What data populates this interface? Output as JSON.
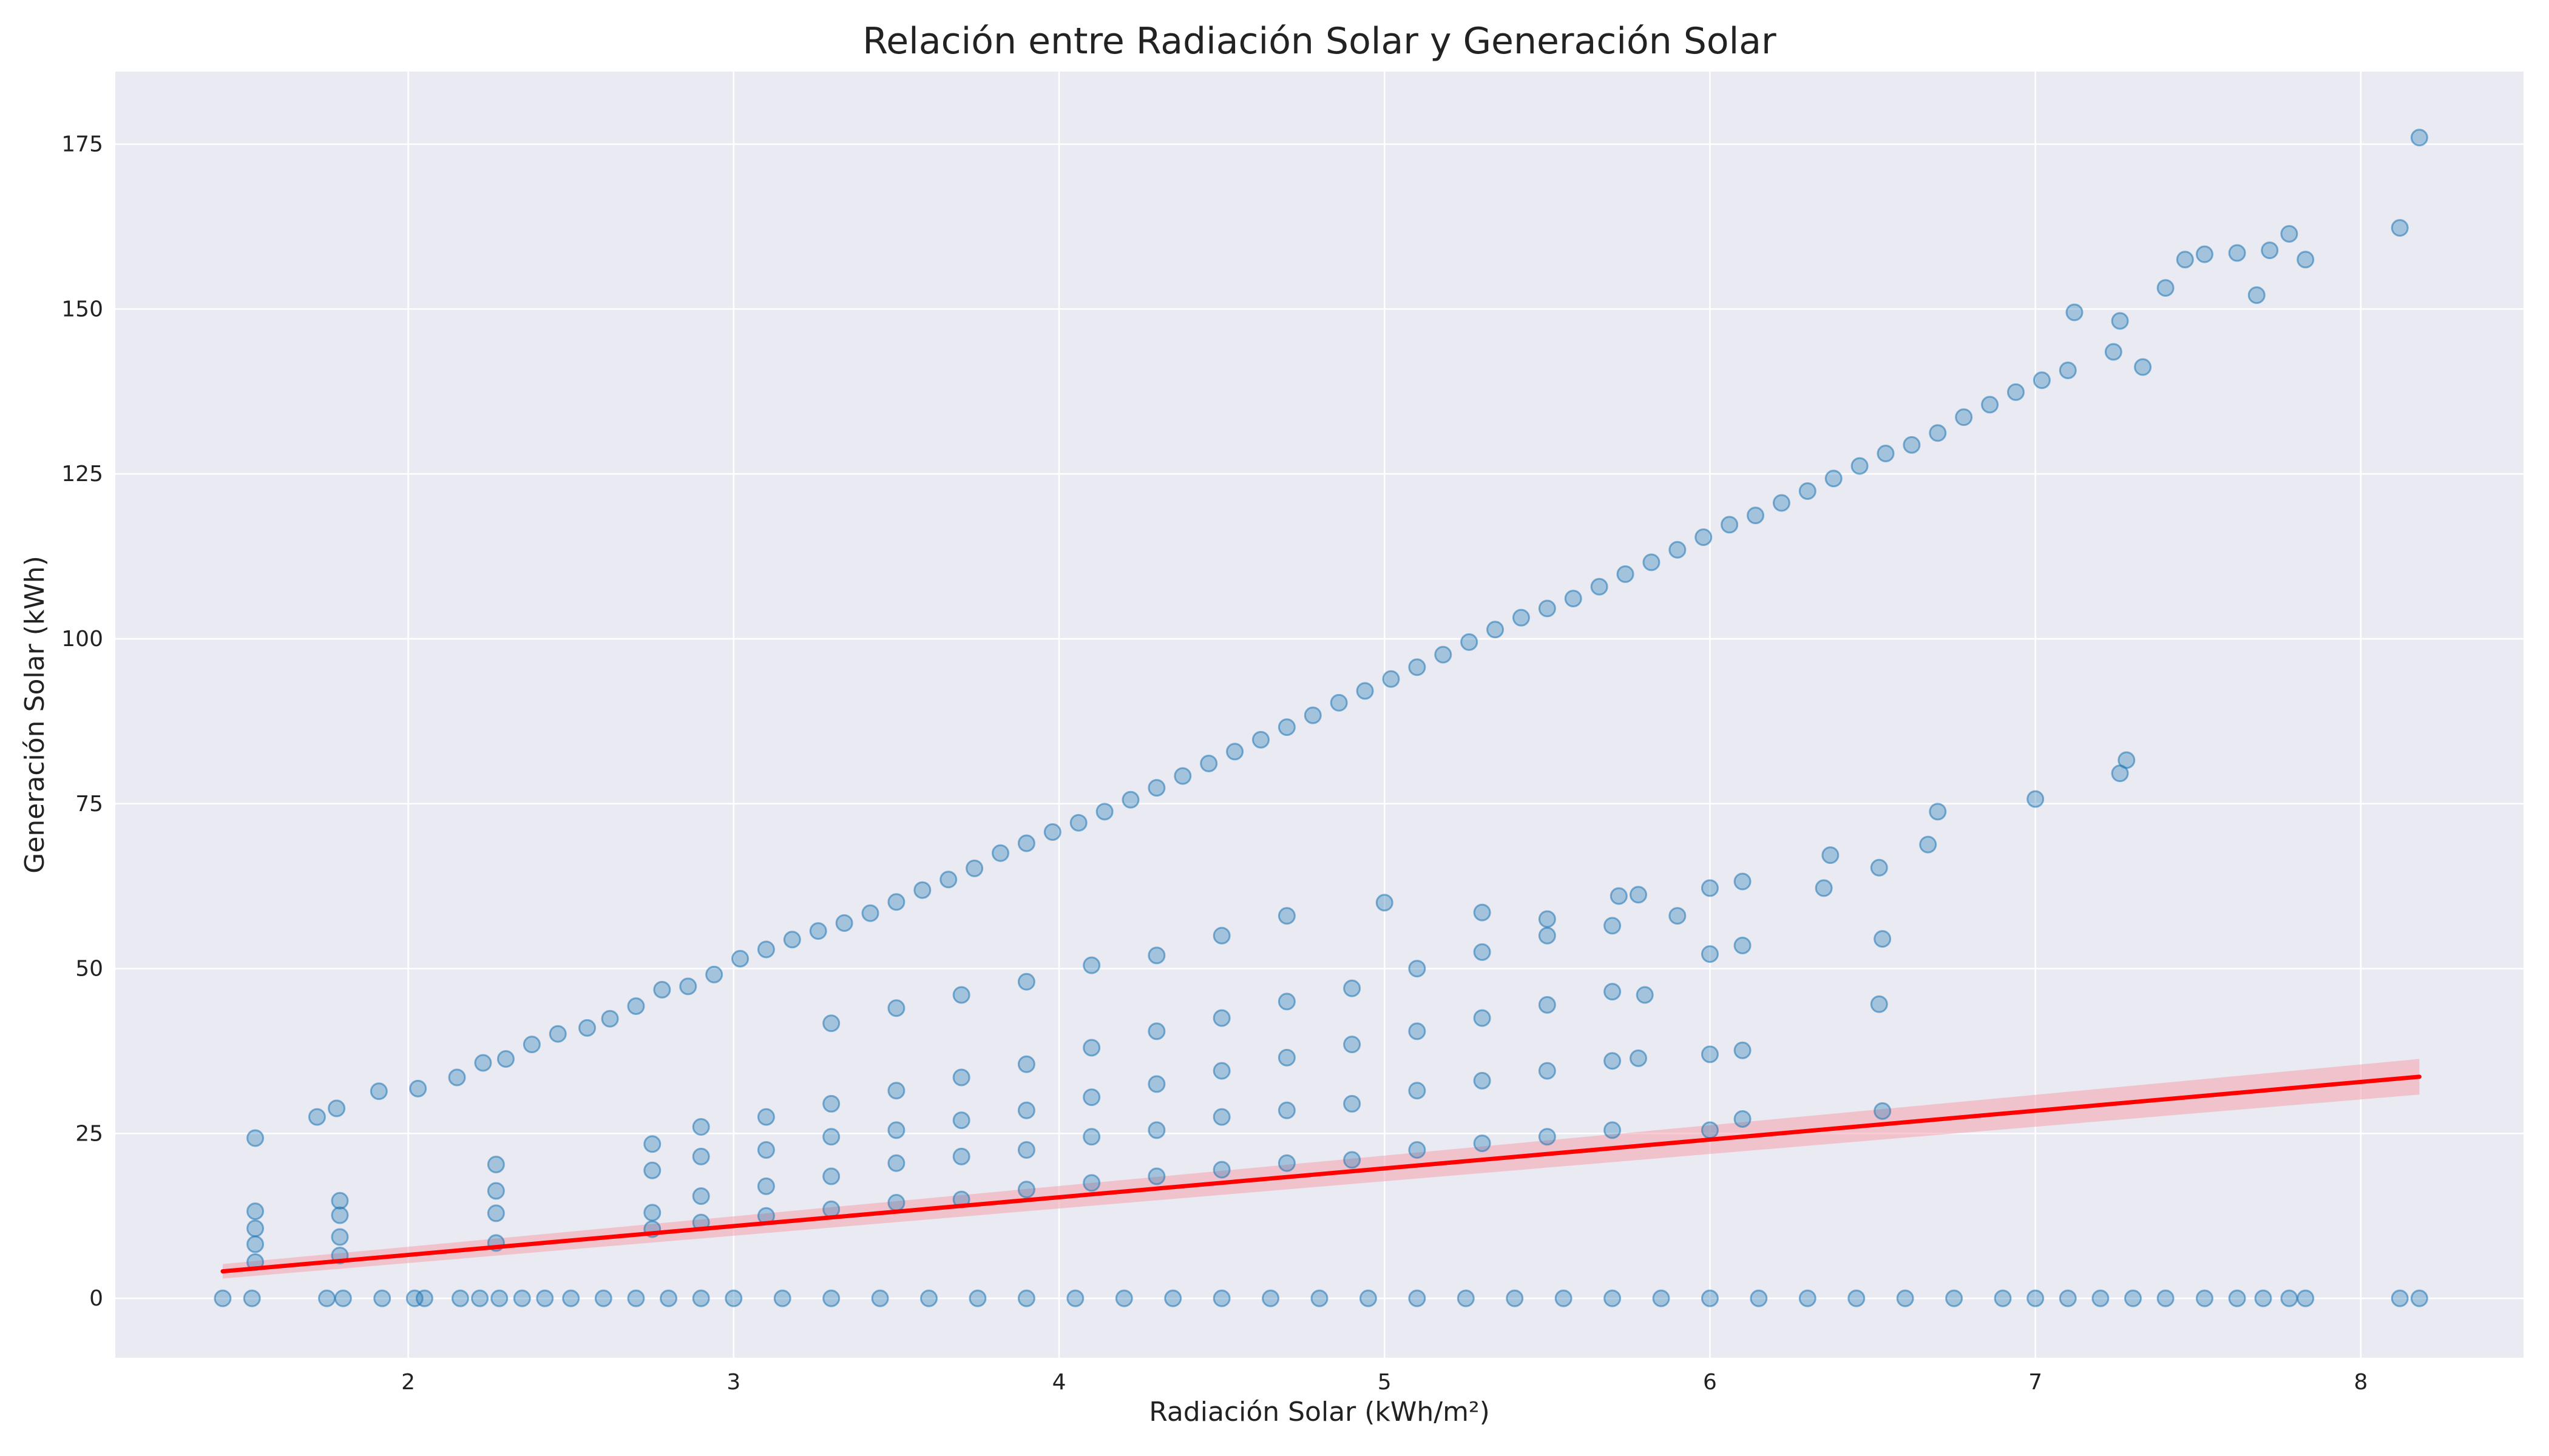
{
  "chart_data": {
    "type": "scatter",
    "title": "Relación entre Radiación Solar y Generación Solar",
    "xlabel": "Radiación Solar (kWh/m²)",
    "ylabel": "Generación Solar (kWh)",
    "xlim": [
      1.1,
      8.5
    ],
    "ylim": [
      -9,
      186
    ],
    "xticks": [
      2,
      3,
      4,
      5,
      6,
      7,
      8
    ],
    "yticks": [
      0,
      25,
      50,
      75,
      100,
      125,
      150,
      175
    ],
    "grid": true,
    "colors": {
      "background": "#eaeaf2",
      "grid": "#ffffff",
      "points": "#1f77b4",
      "regression": "#ff0000",
      "confidence_band": "#f4a3ad"
    },
    "points_opacity": 0.35,
    "series": [
      {
        "type": "scatter",
        "points": [
          [
            1.43,
            0
          ],
          [
            1.52,
            0
          ],
          [
            1.75,
            0
          ],
          [
            1.8,
            0
          ],
          [
            1.92,
            0
          ],
          [
            2.02,
            0
          ],
          [
            2.05,
            0
          ],
          [
            2.16,
            0
          ],
          [
            2.22,
            0
          ],
          [
            2.28,
            0
          ],
          [
            2.35,
            0
          ],
          [
            2.42,
            0
          ],
          [
            2.5,
            0
          ],
          [
            2.6,
            0
          ],
          [
            2.7,
            0
          ],
          [
            2.8,
            0
          ],
          [
            2.9,
            0
          ],
          [
            3.0,
            0
          ],
          [
            3.15,
            0
          ],
          [
            3.3,
            0
          ],
          [
            3.45,
            0
          ],
          [
            3.6,
            0
          ],
          [
            3.75,
            0
          ],
          [
            3.9,
            0
          ],
          [
            4.05,
            0
          ],
          [
            4.2,
            0
          ],
          [
            4.35,
            0
          ],
          [
            4.5,
            0
          ],
          [
            4.65,
            0
          ],
          [
            4.8,
            0
          ],
          [
            4.95,
            0
          ],
          [
            5.1,
            0
          ],
          [
            5.25,
            0
          ],
          [
            5.4,
            0
          ],
          [
            5.55,
            0
          ],
          [
            5.7,
            0
          ],
          [
            5.85,
            0
          ],
          [
            6.0,
            0
          ],
          [
            6.15,
            0
          ],
          [
            6.3,
            0
          ],
          [
            6.45,
            0
          ],
          [
            6.6,
            0
          ],
          [
            6.75,
            0
          ],
          [
            6.9,
            0
          ],
          [
            7.0,
            0
          ],
          [
            7.1,
            0
          ],
          [
            7.2,
            0
          ],
          [
            7.3,
            0
          ],
          [
            7.4,
            0
          ],
          [
            7.52,
            0
          ],
          [
            7.62,
            0
          ],
          [
            7.7,
            0
          ],
          [
            7.78,
            0
          ],
          [
            7.83,
            0
          ],
          [
            8.12,
            0
          ],
          [
            8.18,
            0
          ],
          [
            1.53,
            24.3
          ],
          [
            1.72,
            27.5
          ],
          [
            1.78,
            28.8
          ],
          [
            1.91,
            31.4
          ],
          [
            2.03,
            31.8
          ],
          [
            2.15,
            33.5
          ],
          [
            2.23,
            35.7
          ],
          [
            2.3,
            36.3
          ],
          [
            2.38,
            38.5
          ],
          [
            2.46,
            40.1
          ],
          [
            2.55,
            41.0
          ],
          [
            2.62,
            42.4
          ],
          [
            2.7,
            44.3
          ],
          [
            2.78,
            46.8
          ],
          [
            2.86,
            47.3
          ],
          [
            2.94,
            49.1
          ],
          [
            3.02,
            51.5
          ],
          [
            3.1,
            52.9
          ],
          [
            3.18,
            54.4
          ],
          [
            3.26,
            55.7
          ],
          [
            3.34,
            56.9
          ],
          [
            3.42,
            58.4
          ],
          [
            3.5,
            60.1
          ],
          [
            3.58,
            61.9
          ],
          [
            3.66,
            63.5
          ],
          [
            3.74,
            65.2
          ],
          [
            3.82,
            67.5
          ],
          [
            3.9,
            69.0
          ],
          [
            3.98,
            70.7
          ],
          [
            4.06,
            72.1
          ],
          [
            4.14,
            73.8
          ],
          [
            4.22,
            75.6
          ],
          [
            4.3,
            77.4
          ],
          [
            4.38,
            79.2
          ],
          [
            4.46,
            81.1
          ],
          [
            4.54,
            82.9
          ],
          [
            4.62,
            84.7
          ],
          [
            4.7,
            86.6
          ],
          [
            4.78,
            88.4
          ],
          [
            4.86,
            90.3
          ],
          [
            4.94,
            92.1
          ],
          [
            5.02,
            93.9
          ],
          [
            5.1,
            95.7
          ],
          [
            5.18,
            97.6
          ],
          [
            5.26,
            99.5
          ],
          [
            5.34,
            101.4
          ],
          [
            5.42,
            103.2
          ],
          [
            5.5,
            104.6
          ],
          [
            5.58,
            106.1
          ],
          [
            5.66,
            107.9
          ],
          [
            5.74,
            109.8
          ],
          [
            5.82,
            111.6
          ],
          [
            5.9,
            113.5
          ],
          [
            5.98,
            115.4
          ],
          [
            6.06,
            117.3
          ],
          [
            6.14,
            118.7
          ],
          [
            6.22,
            120.6
          ],
          [
            6.3,
            122.4
          ],
          [
            6.38,
            124.3
          ],
          [
            6.46,
            126.2
          ],
          [
            6.54,
            128.1
          ],
          [
            6.62,
            129.4
          ],
          [
            6.7,
            131.2
          ],
          [
            6.78,
            133.6
          ],
          [
            6.86,
            135.5
          ],
          [
            6.94,
            137.4
          ],
          [
            7.02,
            139.2
          ],
          [
            7.1,
            140.7
          ],
          [
            7.12,
            149.5
          ],
          [
            7.24,
            143.5
          ],
          [
            7.26,
            148.2
          ],
          [
            7.33,
            141.2
          ],
          [
            7.4,
            153.2
          ],
          [
            7.46,
            157.5
          ],
          [
            7.52,
            158.3
          ],
          [
            7.62,
            158.5
          ],
          [
            7.68,
            152.1
          ],
          [
            7.72,
            158.9
          ],
          [
            7.78,
            161.4
          ],
          [
            7.83,
            157.5
          ],
          [
            8.12,
            162.3
          ],
          [
            8.18,
            176.0
          ],
          [
            3.3,
            41.7
          ],
          [
            3.5,
            44.0
          ],
          [
            3.7,
            46.0
          ],
          [
            3.9,
            48.0
          ],
          [
            4.1,
            50.5
          ],
          [
            4.3,
            52.0
          ],
          [
            4.5,
            55.0
          ],
          [
            4.7,
            58.0
          ],
          [
            5.0,
            60.0
          ],
          [
            5.3,
            58.5
          ],
          [
            5.5,
            57.5
          ],
          [
            5.72,
            61.0
          ],
          [
            5.78,
            61.2
          ],
          [
            6.0,
            62.2
          ],
          [
            6.1,
            63.2
          ],
          [
            6.35,
            62.2
          ],
          [
            6.37,
            67.2
          ],
          [
            6.52,
            65.3
          ],
          [
            6.67,
            68.8
          ],
          [
            6.7,
            73.8
          ],
          [
            7.0,
            75.7
          ],
          [
            7.26,
            79.6
          ],
          [
            7.28,
            81.6
          ],
          [
            2.75,
            23.4
          ],
          [
            2.9,
            26.0
          ],
          [
            3.1,
            27.5
          ],
          [
            3.3,
            29.5
          ],
          [
            3.5,
            31.5
          ],
          [
            3.7,
            33.5
          ],
          [
            3.9,
            35.5
          ],
          [
            4.1,
            38.0
          ],
          [
            4.3,
            40.5
          ],
          [
            4.5,
            42.5
          ],
          [
            4.7,
            45.0
          ],
          [
            4.9,
            47.0
          ],
          [
            5.1,
            50.0
          ],
          [
            5.3,
            52.5
          ],
          [
            5.5,
            55.0
          ],
          [
            5.7,
            56.5
          ],
          [
            5.9,
            58.0
          ],
          [
            6.0,
            52.2
          ],
          [
            6.1,
            53.5
          ],
          [
            6.53,
            54.5
          ],
          [
            6.52,
            44.6
          ],
          [
            2.75,
            19.4
          ],
          [
            2.9,
            21.5
          ],
          [
            3.1,
            22.5
          ],
          [
            3.3,
            24.5
          ],
          [
            3.5,
            25.5
          ],
          [
            3.7,
            27.0
          ],
          [
            3.9,
            28.5
          ],
          [
            4.1,
            30.5
          ],
          [
            4.3,
            32.5
          ],
          [
            4.5,
            34.5
          ],
          [
            4.7,
            36.5
          ],
          [
            4.9,
            38.5
          ],
          [
            5.1,
            40.5
          ],
          [
            5.3,
            42.5
          ],
          [
            5.5,
            44.5
          ],
          [
            5.7,
            46.5
          ],
          [
            5.8,
            46.0
          ],
          [
            6.0,
            37.0
          ],
          [
            6.1,
            37.6
          ],
          [
            2.27,
            20.3
          ],
          [
            2.27,
            16.3
          ],
          [
            2.27,
            12.9
          ],
          [
            2.27,
            8.4
          ],
          [
            2.75,
            13.0
          ],
          [
            2.9,
            15.5
          ],
          [
            3.1,
            17.0
          ],
          [
            3.3,
            18.5
          ],
          [
            3.5,
            20.5
          ],
          [
            3.7,
            21.5
          ],
          [
            3.9,
            22.5
          ],
          [
            4.1,
            24.5
          ],
          [
            4.3,
            25.5
          ],
          [
            4.5,
            27.5
          ],
          [
            4.7,
            28.5
          ],
          [
            4.9,
            29.5
          ],
          [
            5.1,
            31.5
          ],
          [
            5.3,
            33.0
          ],
          [
            5.5,
            34.5
          ],
          [
            5.7,
            36.0
          ],
          [
            5.78,
            36.4
          ],
          [
            2.75,
            10.5
          ],
          [
            2.9,
            11.5
          ],
          [
            3.1,
            12.5
          ],
          [
            3.3,
            13.5
          ],
          [
            3.5,
            14.5
          ],
          [
            3.7,
            15.0
          ],
          [
            3.9,
            16.5
          ],
          [
            4.1,
            17.5
          ],
          [
            4.3,
            18.5
          ],
          [
            4.5,
            19.5
          ],
          [
            4.7,
            20.5
          ],
          [
            4.9,
            21.0
          ],
          [
            5.1,
            22.5
          ],
          [
            5.3,
            23.5
          ],
          [
            5.5,
            24.5
          ],
          [
            5.7,
            25.5
          ],
          [
            6.0,
            25.5
          ],
          [
            6.1,
            27.2
          ],
          [
            6.53,
            28.4
          ],
          [
            1.53,
            13.2
          ],
          [
            1.53,
            10.6
          ],
          [
            1.53,
            8.2
          ],
          [
            1.53,
            5.5
          ],
          [
            1.79,
            14.8
          ],
          [
            1.79,
            12.6
          ],
          [
            1.79,
            9.3
          ],
          [
            1.79,
            6.5
          ]
        ]
      },
      {
        "type": "regression_line",
        "x": [
          1.43,
          8.18
        ],
        "y": [
          4.1,
          33.6
        ],
        "confidence_band": {
          "x": [
            1.43,
            8.18
          ],
          "lower": [
            3.0,
            30.9
          ],
          "upper": [
            5.2,
            36.3
          ]
        }
      }
    ]
  }
}
